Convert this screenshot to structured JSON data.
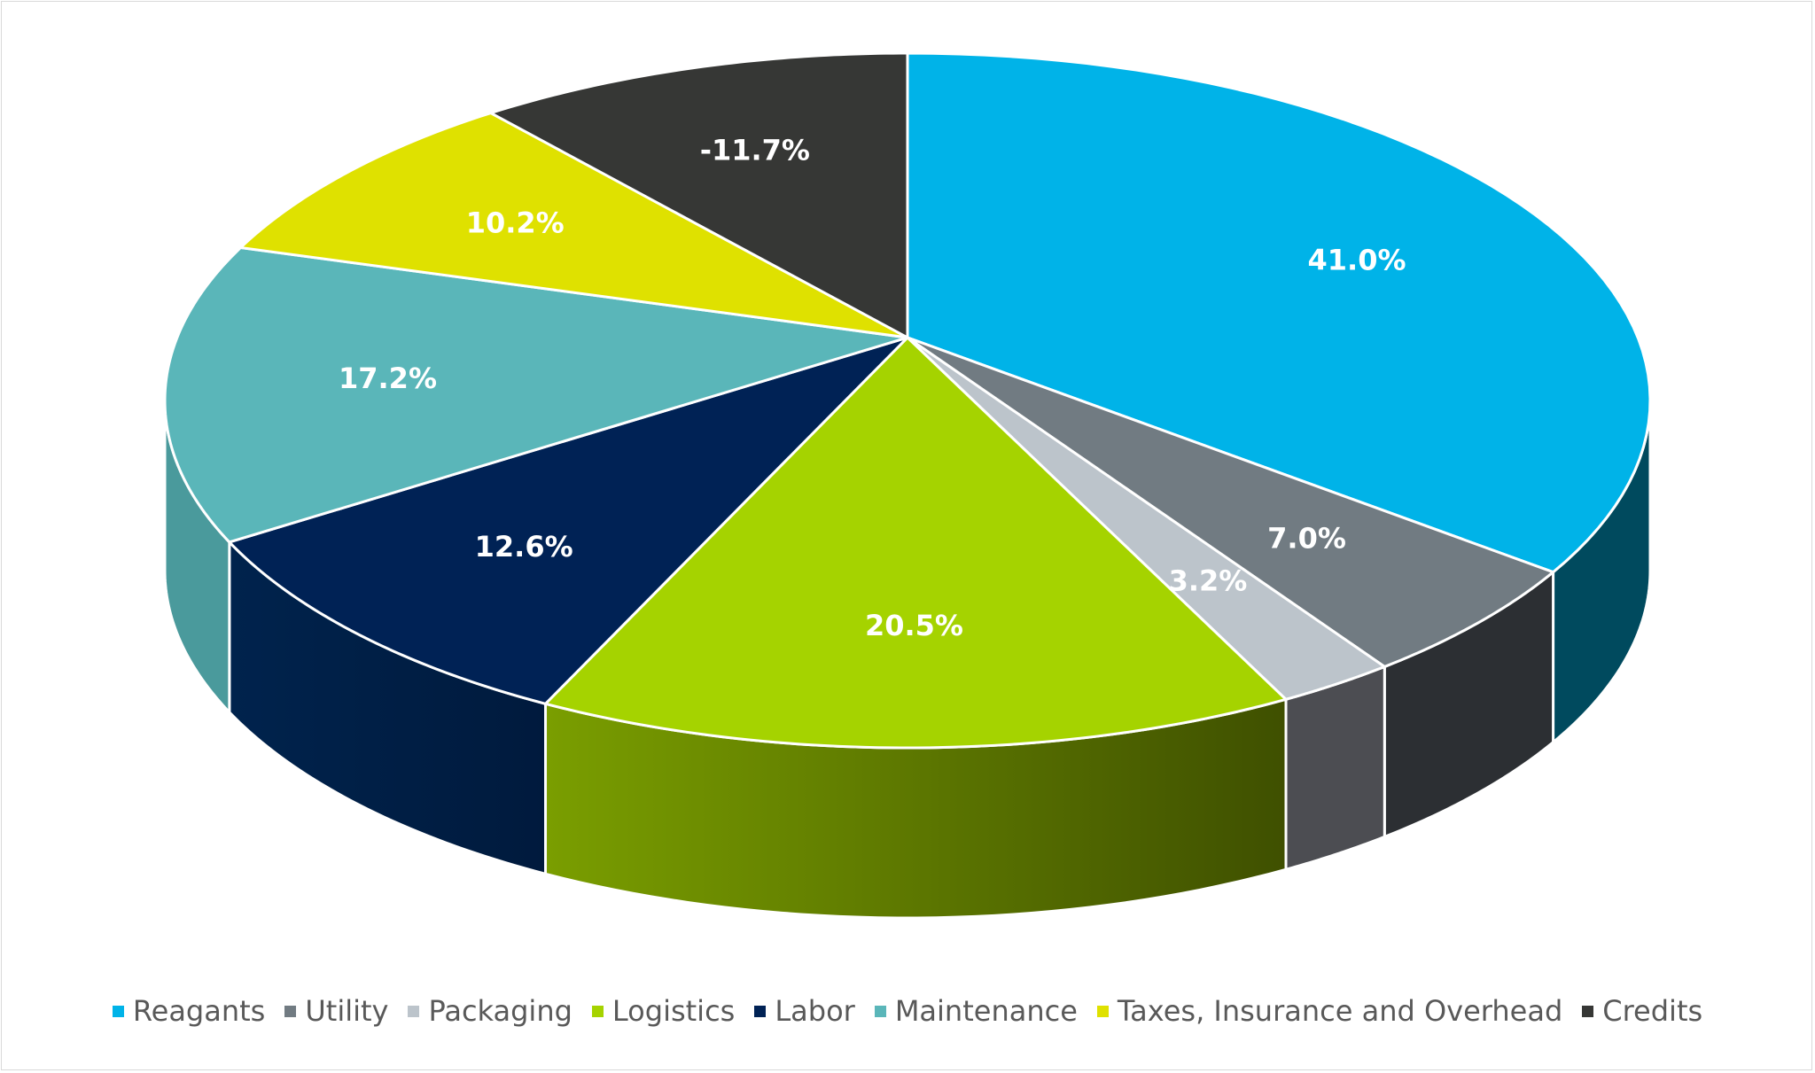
{
  "chart_data": {
    "type": "pie",
    "style": "3d",
    "categories": [
      "Reagants",
      "Utility",
      "Packaging",
      "Logistics",
      "Labor",
      "Maintenance",
      "Taxes, Insurance and Overhead",
      "Credits"
    ],
    "values": [
      41.0,
      7.0,
      3.2,
      20.5,
      12.6,
      17.2,
      10.2,
      -11.7
    ],
    "data_labels": [
      "41.0%",
      "7.0%",
      "3.2%",
      "20.5%",
      "12.6%",
      "17.2%",
      "10.2%",
      "-11.7%"
    ],
    "colors": [
      "#00b3e8",
      "#717b82",
      "#bcc4cb",
      "#a5d300",
      "#002255",
      "#5ab6b9",
      "#dfe100",
      "#363735"
    ],
    "side_colors": [
      "#004a5e",
      "#2c2f33",
      "#4c4d52",
      "#5a7a00",
      "#001d45",
      "#4a9a9c",
      "#9a9c00",
      "#262626"
    ],
    "legend_position": "bottom",
    "title": ""
  }
}
